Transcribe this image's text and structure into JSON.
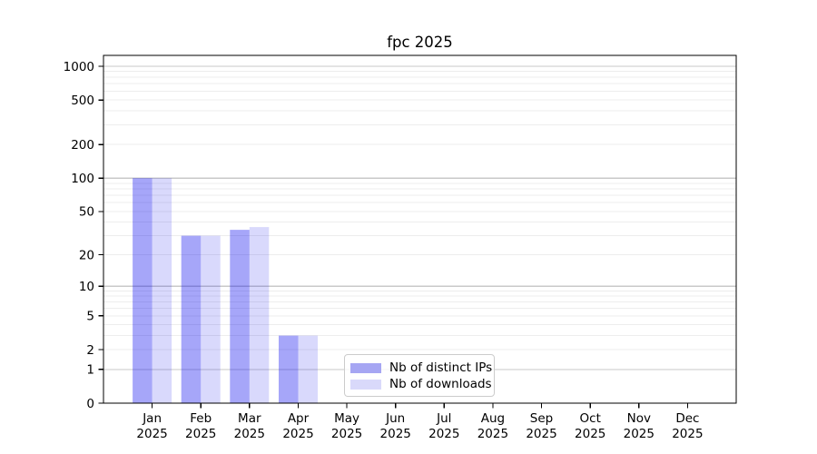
{
  "chart_data": {
    "type": "bar",
    "title": "fpc 2025",
    "year_label": "2025",
    "categories": [
      "Jan",
      "Feb",
      "Mar",
      "Apr",
      "May",
      "Jun",
      "Jul",
      "Aug",
      "Sep",
      "Oct",
      "Nov",
      "Dec"
    ],
    "series": [
      {
        "name": "Nb of distinct IPs",
        "color": "#a6a6f3",
        "base_color": "#0000ee",
        "alpha": 0.35,
        "values": [
          100,
          30,
          34,
          3,
          0,
          0,
          0,
          0,
          0,
          0,
          0,
          0
        ]
      },
      {
        "name": "Nb of downloads",
        "color": "#d9d9fa",
        "base_color": "#0000ee",
        "alpha": 0.15,
        "values": [
          100,
          30,
          36,
          3,
          0,
          0,
          0,
          0,
          0,
          0,
          0,
          0
        ]
      }
    ],
    "yscale": "log1p",
    "ylim": [
      0,
      1260
    ],
    "yticks": [
      0,
      1,
      2,
      5,
      10,
      20,
      50,
      100,
      200,
      500,
      1000
    ],
    "major_gridlines": [
      1,
      10,
      100,
      1000
    ],
    "minor_gridlines": [
      2,
      3,
      4,
      5,
      6,
      7,
      8,
      9,
      20,
      30,
      40,
      50,
      60,
      70,
      80,
      90,
      200,
      300,
      400,
      500,
      600,
      700,
      800,
      900
    ],
    "grid": true,
    "legend_position": "lower center",
    "colors": {
      "axis": "#000000",
      "text": "#000000",
      "major_grid": "#c9c9c9",
      "minor_grid": "#ededed",
      "legend_border": "#cccccc"
    }
  }
}
